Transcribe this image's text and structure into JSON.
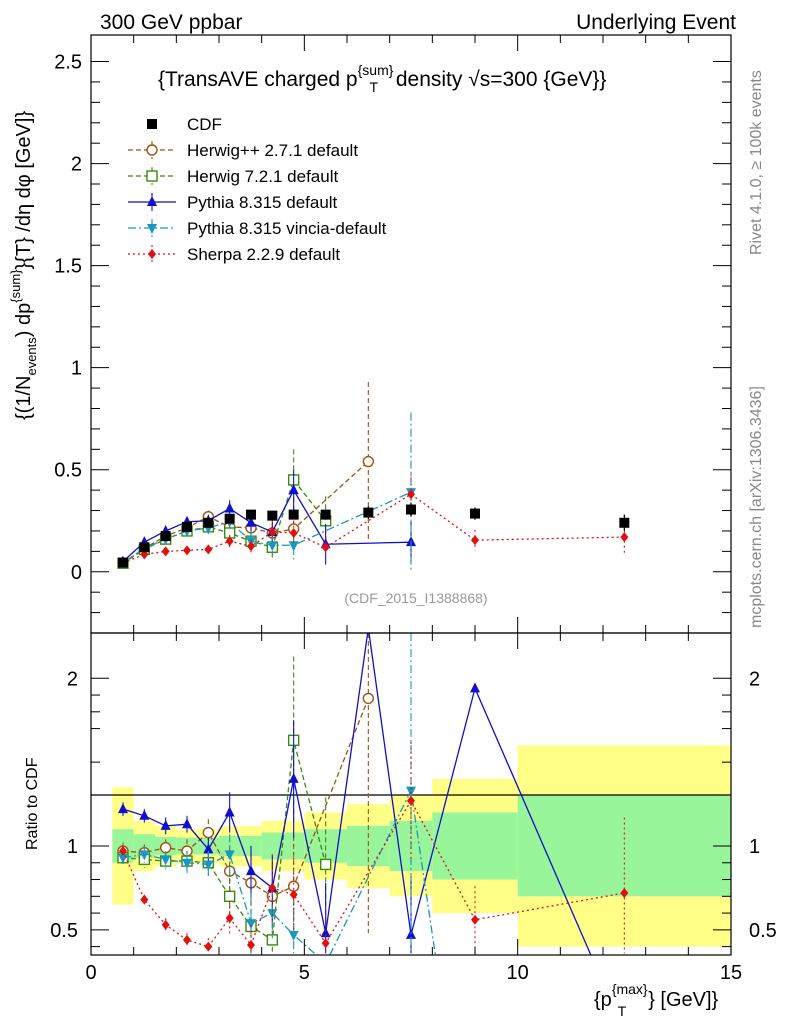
{
  "header": {
    "left": "300 GeV ppbar",
    "right": "Underlying Event",
    "side_top": "Rivet 4.1.0, ≥ 100k events",
    "side_bottom": "mcplots.cern.ch [arXiv:1306.3436]",
    "watermark": "(CDF_2015_I1388868)"
  },
  "chart_data": {
    "type": "line",
    "title": "{TransAVE charged p^{sum}_T density √s=300 {GeV}}",
    "title_parts": {
      "a": "{TransAVE charged p",
      "sup": "{sum}",
      "sub": "T",
      "b": " density √s=300 {GeV}}"
    },
    "xlabel": "{p_T^{max}} [GeV]}",
    "xlabel_parts": {
      "a": "{p",
      "sup": "{max}",
      "sub": "T",
      "b": "} [GeV]}"
    },
    "ylabel": "{(1/N_events) dp^{sum}}{T} /dη dφ [GeV]}",
    "ylabel_parts": {
      "a": "{(1/N",
      "sub1": "events",
      "b": ") dp",
      "sup": "{sum}",
      "c": "}{T} /dη  dφ [GeV]}"
    },
    "ratio_ylabel": "Ratio to CDF",
    "xlim": [
      0,
      15
    ],
    "ylim": [
      -0.3,
      2.63
    ],
    "ratio_ylim": [
      0.35,
      2.27
    ],
    "x_ticks": [
      "0",
      "5",
      "10",
      "15"
    ],
    "y_ticks": [
      "0",
      "0.5",
      "1",
      "1.5",
      "2",
      "2.5"
    ],
    "ratio_ticks": [
      "0.5",
      "1",
      "2"
    ],
    "cdf": {
      "name": "CDF",
      "color": "#000000",
      "x": [
        0.75,
        1.25,
        1.75,
        2.25,
        2.75,
        3.25,
        3.75,
        4.25,
        4.75,
        5.5,
        6.5,
        7.5,
        9.0,
        12.5
      ],
      "y": [
        0.045,
        0.12,
        0.175,
        0.22,
        0.24,
        0.26,
        0.28,
        0.275,
        0.28,
        0.28,
        0.29,
        0.305,
        0.285,
        0.24
      ],
      "err": [
        0.005,
        0.008,
        0.01,
        0.012,
        0.014,
        0.016,
        0.018,
        0.02,
        0.022,
        0.025,
        0.03,
        0.035,
        0.03,
        0.04
      ],
      "band_inner": [
        0.1,
        0.07,
        0.055,
        0.05,
        0.05,
        0.06,
        0.06,
        0.08,
        0.08,
        0.1,
        0.12,
        0.15,
        0.2,
        0.3
      ],
      "band_outer": [
        0.35,
        0.15,
        0.12,
        0.1,
        0.1,
        0.12,
        0.12,
        0.15,
        0.15,
        0.2,
        0.25,
        0.3,
        0.4,
        0.6
      ]
    },
    "series": [
      {
        "name": "Herwig++ 2.7.1 default",
        "color": "#a05010",
        "marker": "circle-open",
        "dash": "5,3",
        "x": [
          0.75,
          1.25,
          1.75,
          2.25,
          2.75,
          3.25,
          3.75,
          4.25,
          4.75,
          6.5
        ],
        "y": [
          0.043,
          0.115,
          0.175,
          0.215,
          0.27,
          0.22,
          0.215,
          0.19,
          0.21,
          0.54
        ],
        "err": [
          0.005,
          0.01,
          0.015,
          0.02,
          0.03,
          0.05,
          0.06,
          0.05,
          0.08,
          0.39
        ],
        "ratio": [
          0.97,
          0.96,
          0.99,
          0.97,
          1.08,
          0.85,
          0.78,
          0.7,
          0.76,
          1.88
        ],
        "ratio_err": [
          0.05,
          0.05,
          0.05,
          0.07,
          0.08,
          0.15,
          0.18,
          0.2,
          0.3,
          1.4
        ]
      },
      {
        "name": "Herwig 7.2.1 default",
        "color": "#3a8a10",
        "marker": "square-open",
        "dash": "5,3",
        "x": [
          0.75,
          1.25,
          1.75,
          2.25,
          2.75,
          3.25,
          3.75,
          4.25,
          4.75,
          5.5
        ],
        "y": [
          0.042,
          0.11,
          0.16,
          0.2,
          0.22,
          0.19,
          0.15,
          0.12,
          0.45,
          0.25
        ],
        "err": [
          0.005,
          0.01,
          0.015,
          0.02,
          0.03,
          0.05,
          0.06,
          0.05,
          0.15,
          0.12
        ],
        "ratio": [
          0.93,
          0.92,
          0.91,
          0.91,
          0.9,
          0.7,
          0.52,
          0.44,
          1.63,
          0.89
        ],
        "ratio_err": [
          0.04,
          0.05,
          0.05,
          0.06,
          0.08,
          0.15,
          0.2,
          0.15,
          0.5,
          0.4
        ]
      },
      {
        "name": "Pythia 8.315 default",
        "color": "#1010cc",
        "marker": "triangle-up",
        "dash": "",
        "x": [
          0.75,
          1.25,
          1.75,
          2.25,
          2.75,
          3.25,
          3.75,
          4.25,
          4.75,
          5.5,
          7.5
        ],
        "y": [
          0.05,
          0.145,
          0.2,
          0.245,
          0.25,
          0.31,
          0.24,
          0.195,
          0.4,
          0.135,
          0.145
        ],
        "err": [
          0.005,
          0.01,
          0.015,
          0.02,
          0.03,
          0.04,
          0.05,
          0.05,
          0.1,
          0.1,
          0.1
        ],
        "ratio_x": [
          0.75,
          1.25,
          1.75,
          2.25,
          2.75,
          3.25,
          3.75,
          4.25,
          4.75,
          5.5,
          6.5,
          7.5,
          9.0,
          11.8
        ],
        "ratio": [
          1.22,
          1.18,
          1.12,
          1.13,
          0.98,
          1.2,
          0.85,
          0.75,
          1.4,
          0.48,
          2.3,
          0.47,
          1.94,
          0.3
        ],
        "ratio_err": [
          0.04,
          0.04,
          0.05,
          0.05,
          0.07,
          0.12,
          0.15,
          0.2,
          0.35,
          0.3,
          0.0,
          0.35,
          0.0,
          0.0
        ]
      },
      {
        "name": "Pythia 8.315 vincia-default",
        "color": "#1898c0",
        "marker": "triangle-down",
        "dash": "8,3,2,3",
        "x": [
          0.75,
          1.25,
          1.75,
          2.25,
          2.75,
          3.25,
          3.75,
          4.25,
          4.75,
          7.5
        ],
        "y": [
          0.042,
          0.115,
          0.16,
          0.2,
          0.215,
          0.245,
          0.15,
          0.13,
          0.13,
          0.39
        ],
        "err": [
          0.005,
          0.01,
          0.015,
          0.02,
          0.03,
          0.04,
          0.05,
          0.05,
          0.07,
          0.39
        ],
        "ratio_x": [
          0.75,
          1.25,
          1.75,
          2.25,
          2.75,
          3.25,
          3.75,
          4.25,
          4.75,
          5.5,
          7.5,
          8.1
        ],
        "ratio": [
          0.93,
          0.95,
          0.92,
          0.9,
          0.89,
          0.95,
          0.54,
          0.6,
          0.47,
          0.3,
          1.33,
          0.3
        ],
        "ratio_err": [
          0.04,
          0.05,
          0.05,
          0.06,
          0.08,
          0.12,
          0.18,
          0.15,
          0.25,
          0.0,
          1.3,
          0.0
        ]
      },
      {
        "name": "Sherpa 2.2.9 default",
        "color": "#e01010",
        "marker": "diamond",
        "dash": "2,3",
        "x": [
          0.75,
          1.25,
          1.75,
          2.25,
          2.75,
          3.25,
          3.75,
          4.25,
          4.75,
          5.5,
          7.5,
          9.0,
          12.5
        ],
        "y": [
          0.044,
          0.085,
          0.1,
          0.105,
          0.11,
          0.15,
          0.125,
          0.195,
          0.19,
          0.12,
          0.38,
          0.155,
          0.17
        ],
        "err": [
          0.005,
          0.008,
          0.01,
          0.012,
          0.015,
          0.03,
          0.03,
          0.06,
          0.06,
          0.05,
          0.1,
          0.05,
          0.08
        ],
        "ratio": [
          0.97,
          0.68,
          0.53,
          0.44,
          0.4,
          0.57,
          0.41,
          0.75,
          0.71,
          0.42,
          1.27,
          0.56,
          0.72
        ],
        "ratio_err": [
          0.03,
          0.03,
          0.04,
          0.04,
          0.05,
          0.1,
          0.12,
          0.2,
          0.22,
          0.2,
          0.35,
          0.2,
          0.45
        ]
      }
    ]
  }
}
